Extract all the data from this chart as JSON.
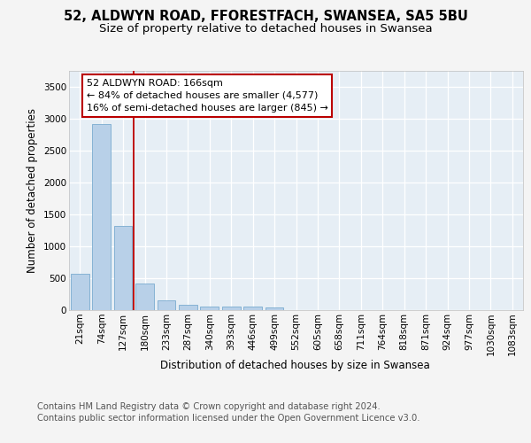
{
  "title_line1": "52, ALDWYN ROAD, FFORESTFACH, SWANSEA, SA5 5BU",
  "title_line2": "Size of property relative to detached houses in Swansea",
  "xlabel": "Distribution of detached houses by size in Swansea",
  "ylabel": "Number of detached properties",
  "footer_line1": "Contains HM Land Registry data © Crown copyright and database right 2024.",
  "footer_line2": "Contains public sector information licensed under the Open Government Licence v3.0.",
  "categories": [
    "21sqm",
    "74sqm",
    "127sqm",
    "180sqm",
    "233sqm",
    "287sqm",
    "340sqm",
    "393sqm",
    "446sqm",
    "499sqm",
    "552sqm",
    "605sqm",
    "658sqm",
    "711sqm",
    "764sqm",
    "818sqm",
    "871sqm",
    "924sqm",
    "977sqm",
    "1030sqm",
    "1083sqm"
  ],
  "values": [
    575,
    2920,
    1325,
    415,
    155,
    80,
    60,
    55,
    50,
    35,
    0,
    0,
    0,
    0,
    0,
    0,
    0,
    0,
    0,
    0,
    0
  ],
  "bar_color": "#b8d0e8",
  "bar_edge_color": "#7aabcf",
  "vline_position": 2.5,
  "vline_color": "#bb0000",
  "annotation_text": "52 ALDWYN ROAD: 166sqm\n← 84% of detached houses are smaller (4,577)\n16% of semi-detached houses are larger (845) →",
  "ylim": [
    0,
    3750
  ],
  "yticks": [
    0,
    500,
    1000,
    1500,
    2000,
    2500,
    3000,
    3500
  ],
  "fig_bg_color": "#f4f4f4",
  "plot_bg_color": "#e6eef5",
  "grid_color": "#ffffff",
  "title_fontsize": 10.5,
  "subtitle_fontsize": 9.5,
  "axis_label_fontsize": 8.5,
  "tick_fontsize": 7.5,
  "annotation_fontsize": 8,
  "footer_fontsize": 7.2
}
